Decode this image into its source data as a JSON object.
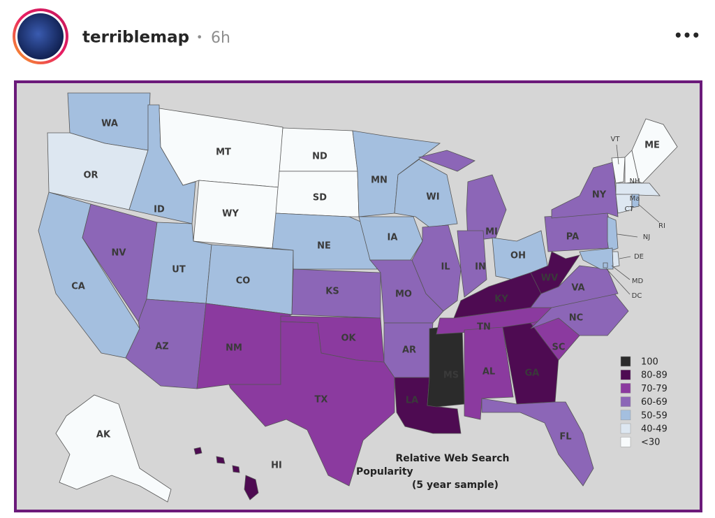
{
  "header": {
    "username": "terriblemap",
    "separator": "•",
    "time": "6h",
    "menu": "•••"
  },
  "map": {
    "caption": [
      "Relative Web Search",
      "Popularity",
      "(5 year sample)"
    ],
    "legend": [
      {
        "label": "100",
        "color": "#2b2b2b"
      },
      {
        "label": "80-89",
        "color": "#4e0b52"
      },
      {
        "label": "70-79",
        "color": "#8b3a9f"
      },
      {
        "label": "60-69",
        "color": "#8c66b7"
      },
      {
        "label": "50-59",
        "color": "#a4bfdf"
      },
      {
        "label": "40-49",
        "color": "#dde7f1"
      },
      {
        "label": "<30",
        "color": "#f8fbfc"
      }
    ],
    "states": [
      {
        "label": "WA",
        "bin": "50-59"
      },
      {
        "label": "OR",
        "bin": "40-49"
      },
      {
        "label": "CA",
        "bin": "50-59"
      },
      {
        "label": "ID",
        "bin": "50-59"
      },
      {
        "label": "MT",
        "bin": "<30"
      },
      {
        "label": "WY",
        "bin": "<30"
      },
      {
        "label": "NV",
        "bin": "60-69"
      },
      {
        "label": "UT",
        "bin": "50-59"
      },
      {
        "label": "AZ",
        "bin": "60-69"
      },
      {
        "label": "CO",
        "bin": "50-59"
      },
      {
        "label": "NM",
        "bin": "70-79"
      },
      {
        "label": "ND",
        "bin": "<30"
      },
      {
        "label": "SD",
        "bin": "<30"
      },
      {
        "label": "NE",
        "bin": "50-59"
      },
      {
        "label": "KS",
        "bin": "60-69"
      },
      {
        "label": "OK",
        "bin": "70-79"
      },
      {
        "label": "TX",
        "bin": "70-79"
      },
      {
        "label": "MN",
        "bin": "50-59"
      },
      {
        "label": "IA",
        "bin": "50-59"
      },
      {
        "label": "MO",
        "bin": "60-69"
      },
      {
        "label": "AR",
        "bin": "60-69"
      },
      {
        "label": "LA",
        "bin": "80-89"
      },
      {
        "label": "MS",
        "bin": "100"
      },
      {
        "label": "WI",
        "bin": "50-59"
      },
      {
        "label": "MI",
        "bin": "60-69"
      },
      {
        "label": "IL",
        "bin": "60-69"
      },
      {
        "label": "IN",
        "bin": "60-69"
      },
      {
        "label": "OH",
        "bin": "50-59"
      },
      {
        "label": "KY",
        "bin": "80-89"
      },
      {
        "label": "TN",
        "bin": "70-79"
      },
      {
        "label": "AL",
        "bin": "70-79"
      },
      {
        "label": "GA",
        "bin": "80-89"
      },
      {
        "label": "FL",
        "bin": "60-69"
      },
      {
        "label": "SC",
        "bin": "70-79"
      },
      {
        "label": "NC",
        "bin": "60-69"
      },
      {
        "label": "VA",
        "bin": "60-69"
      },
      {
        "label": "WV",
        "bin": "80-89"
      },
      {
        "label": "PA",
        "bin": "60-69"
      },
      {
        "label": "NY",
        "bin": "60-69"
      },
      {
        "label": "NJ",
        "bin": "50-59"
      },
      {
        "label": "DE",
        "bin": "40-49"
      },
      {
        "label": "MD",
        "bin": "50-59"
      },
      {
        "label": "DC",
        "bin": "50-59"
      },
      {
        "label": "VT",
        "bin": "<30"
      },
      {
        "label": "NH",
        "bin": "<30"
      },
      {
        "label": "ME",
        "bin": "<30"
      },
      {
        "label": "Ma",
        "bin": "40-49"
      },
      {
        "label": "CT",
        "bin": "40-49"
      },
      {
        "label": "RI",
        "bin": "50-59"
      },
      {
        "label": "AK",
        "bin": "<30"
      },
      {
        "label": "HI",
        "bin": "80-89"
      }
    ]
  }
}
